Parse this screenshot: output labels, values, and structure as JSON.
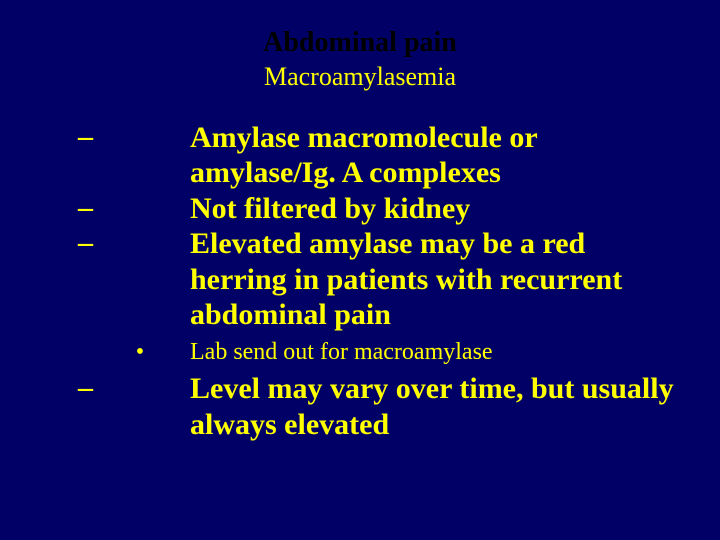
{
  "colors": {
    "background": "#000066",
    "title_color": "#000000",
    "text_color": "#ffff00"
  },
  "typography": {
    "family": "Times New Roman",
    "title_size_pt": 28,
    "subtitle_size_pt": 26,
    "body_size_pt": 30,
    "sub_bullet_size_pt": 24,
    "title_weight": "bold",
    "body_weight": "bold",
    "sub_bullet_weight": "normal"
  },
  "title": "Abdominal pain",
  "subtitle": "Macroamylasemia",
  "items": {
    "dash1": "Amylase macromolecule or amylase/Ig. A complexes",
    "dash2": "Not filtered by kidney",
    "dash3": "Elevated amylase may be a red herring in patients with recurrent abdominal pain",
    "bullet1": "Lab send out for macroamylase",
    "dash4": "Level may vary over time, but usually always elevated"
  },
  "markers": {
    "dash": "–",
    "bullet": "•"
  }
}
